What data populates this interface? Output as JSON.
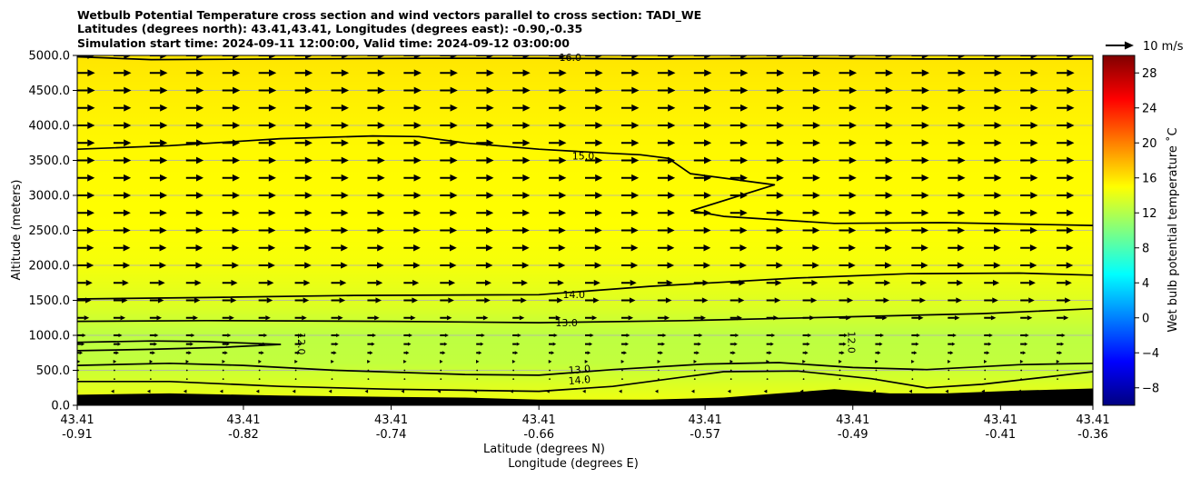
{
  "chart_data": {
    "type": "cross-section",
    "title_lines": [
      "Wetbulb Potential Temperature cross section and wind vectors parallel to cross section: TADI_WE",
      "Latitudes (degrees north): 43.41,43.41, Longitudes (degrees east): -0.90,-0.35",
      "Simulation start time: 2024-09-11 12:00:00, Valid time: 2024-09-12 03:00:00"
    ],
    "xlabel_lat": "Latitude (degrees N)",
    "xlabel_lon": "Longitude (degrees E)",
    "ylabel": "Altitude (meters)",
    "x_tick_lat": [
      "43.41",
      "43.41",
      "43.41",
      "43.41",
      "43.41",
      "43.41",
      "43.41",
      "43.41"
    ],
    "x_tick_lon": [
      "-0.91",
      "-0.82",
      "-0.74",
      "-0.66",
      "-0.57",
      "-0.49",
      "-0.41",
      "-0.36"
    ],
    "x_tick_lon_values": [
      -0.91,
      -0.82,
      -0.74,
      -0.66,
      -0.57,
      -0.49,
      -0.41,
      -0.36
    ],
    "xlim": [
      -0.91,
      -0.36
    ],
    "ylim": [
      0,
      5000
    ],
    "y_ticks": [
      0,
      500,
      1000,
      1500,
      2000,
      2500,
      3000,
      3500,
      4000,
      4500,
      5000
    ],
    "y_tick_labels": [
      "0.0",
      "500.0",
      "1000.0",
      "1500.0",
      "2000.0",
      "2500.0",
      "3000.0",
      "3500.0",
      "4000.0",
      "4500.0",
      "5000.0"
    ],
    "colorbar": {
      "label": "Wet bulb potential temperature ˚C",
      "range": [
        -10,
        30
      ],
      "ticks": [
        -8,
        -4,
        0,
        4,
        8,
        12,
        16,
        20,
        24,
        28
      ],
      "tick_labels": [
        "−8",
        "−4",
        "0",
        "4",
        "8",
        "12",
        "16",
        "20",
        "24",
        "28"
      ]
    },
    "vector_key": {
      "label": "10 m/s",
      "speed": 10
    },
    "contour_labels": [
      {
        "text": "16.0",
        "lon": -0.643,
        "alt": 4960,
        "rotate": 0
      },
      {
        "text": "15.0",
        "lon": -0.636,
        "alt": 3550,
        "rotate": 0
      },
      {
        "text": "14.0",
        "lon": -0.641,
        "alt": 1570,
        "rotate": 0
      },
      {
        "text": "13.0",
        "lon": -0.645,
        "alt": 1170,
        "rotate": 0
      },
      {
        "text": "12.0",
        "lon": -0.789,
        "alt": 880,
        "rotate": 90
      },
      {
        "text": "12.0",
        "lon": -0.491,
        "alt": 900,
        "rotate": 90
      },
      {
        "text": "13.0",
        "lon": -0.638,
        "alt": 500,
        "rotate": -5
      },
      {
        "text": "14.0",
        "lon": -0.638,
        "alt": 350,
        "rotate": -5
      }
    ],
    "contours": [
      {
        "level": 16,
        "points": [
          [
            -0.91,
            4980
          ],
          [
            -0.87,
            4940
          ],
          [
            -0.8,
            4950
          ],
          [
            -0.72,
            4960
          ],
          [
            -0.66,
            4960
          ],
          [
            -0.6,
            4950
          ],
          [
            -0.52,
            4960
          ],
          [
            -0.45,
            4950
          ],
          [
            -0.36,
            4950
          ]
        ]
      },
      {
        "level": 15,
        "points": [
          [
            -0.91,
            3660
          ],
          [
            -0.86,
            3710
          ],
          [
            -0.8,
            3810
          ],
          [
            -0.75,
            3850
          ],
          [
            -0.725,
            3840
          ],
          [
            -0.7,
            3750
          ],
          [
            -0.66,
            3660
          ],
          [
            -0.62,
            3600
          ],
          [
            -0.605,
            3580
          ],
          [
            -0.59,
            3530
          ],
          [
            -0.578,
            3310
          ],
          [
            -0.5325,
            3150
          ],
          [
            -0.5775,
            2780
          ],
          [
            -0.56,
            2700
          ],
          [
            -0.5,
            2600
          ],
          [
            -0.44,
            2610
          ],
          [
            -0.36,
            2570
          ]
        ]
      },
      {
        "level": 14,
        "points": [
          [
            -0.91,
            1520
          ],
          [
            -0.84,
            1540
          ],
          [
            -0.76,
            1570
          ],
          [
            -0.66,
            1580
          ],
          [
            -0.6,
            1700
          ],
          [
            -0.52,
            1820
          ],
          [
            -0.46,
            1880
          ],
          [
            -0.4,
            1890
          ],
          [
            -0.36,
            1860
          ]
        ]
      },
      {
        "level": 13,
        "points": [
          [
            -0.91,
            1200
          ],
          [
            -0.84,
            1210
          ],
          [
            -0.74,
            1200
          ],
          [
            -0.66,
            1180
          ],
          [
            -0.58,
            1210
          ],
          [
            -0.5,
            1260
          ],
          [
            -0.42,
            1310
          ],
          [
            -0.36,
            1380
          ]
        ]
      },
      {
        "level": 12,
        "points": [
          [
            -0.91,
            780
          ],
          [
            -0.87,
            800
          ],
          [
            -0.83,
            830
          ],
          [
            -0.8,
            870
          ],
          [
            -0.84,
            910
          ],
          [
            -0.87,
            920
          ],
          [
            -0.91,
            900
          ]
        ]
      },
      {
        "level": 13,
        "points": [
          [
            -0.91,
            570
          ],
          [
            -0.86,
            600
          ],
          [
            -0.82,
            570
          ],
          [
            -0.77,
            500
          ],
          [
            -0.7,
            440
          ],
          [
            -0.66,
            430
          ],
          [
            -0.62,
            510
          ],
          [
            -0.57,
            590
          ],
          [
            -0.53,
            610
          ],
          [
            -0.49,
            540
          ],
          [
            -0.45,
            510
          ],
          [
            -0.4,
            580
          ],
          [
            -0.36,
            600
          ]
        ]
      },
      {
        "level": 14,
        "points": [
          [
            -0.91,
            340
          ],
          [
            -0.86,
            340
          ],
          [
            -0.8,
            270
          ],
          [
            -0.74,
            230
          ],
          [
            -0.66,
            200
          ],
          [
            -0.62,
            270
          ],
          [
            -0.56,
            480
          ],
          [
            -0.52,
            490
          ],
          [
            -0.48,
            380
          ],
          [
            -0.45,
            250
          ],
          [
            -0.42,
            300
          ],
          [
            -0.36,
            480
          ]
        ]
      }
    ],
    "terrain": [
      [
        -0.91,
        150
      ],
      [
        -0.86,
        170
      ],
      [
        -0.8,
        140
      ],
      [
        -0.74,
        120
      ],
      [
        -0.7,
        110
      ],
      [
        -0.66,
        80
      ],
      [
        -0.6,
        80
      ],
      [
        -0.56,
        110
      ],
      [
        -0.53,
        170
      ],
      [
        -0.5,
        230
      ],
      [
        -0.47,
        170
      ],
      [
        -0.44,
        170
      ],
      [
        -0.4,
        210
      ],
      [
        -0.36,
        240
      ]
    ],
    "shading_profile": [
      {
        "alt": 0,
        "temp": 14.6
      },
      {
        "alt": 300,
        "temp": 13.6
      },
      {
        "alt": 600,
        "temp": 12.6
      },
      {
        "alt": 1000,
        "temp": 12.4
      },
      {
        "alt": 1400,
        "temp": 13.6
      },
      {
        "alt": 2000,
        "temp": 14.6
      },
      {
        "alt": 2600,
        "temp": 15.0
      },
      {
        "alt": 3600,
        "temp": 15.2
      },
      {
        "alt": 4600,
        "temp": 15.7
      },
      {
        "alt": 5000,
        "temp": 16.0
      }
    ],
    "wind_profile": [
      {
        "alt": 200,
        "u": -1.2
      },
      {
        "alt": 500,
        "u": 0.2
      },
      {
        "alt": 800,
        "u": 3.0
      },
      {
        "alt": 1000,
        "u": 4.0
      },
      {
        "alt": 1250,
        "u": 5.5
      },
      {
        "alt": 1500,
        "u": 6.5
      },
      {
        "alt": 1750,
        "u": 7.0
      },
      {
        "alt": 2000,
        "u": 7.6
      },
      {
        "alt": 3000,
        "u": 8.0
      },
      {
        "alt": 5000,
        "u": 8.2
      }
    ],
    "wind_levels": [
      200,
      375,
      500,
      625,
      750,
      875,
      1000,
      1250,
      1500,
      1750,
      2000,
      2250,
      2500,
      2750,
      3000,
      3250,
      3500,
      3750,
      4000,
      4250,
      4500,
      4750,
      5000
    ],
    "wind_columns": 28
  }
}
